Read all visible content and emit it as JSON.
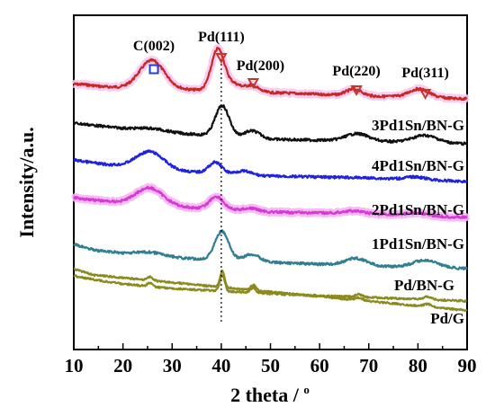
{
  "chart_data": {
    "type": "line",
    "title": "",
    "xlabel": "2 theta / ",
    "xlabel_superscript": "o",
    "ylabel": "Intensity/a.u.",
    "xlim": [
      10,
      90
    ],
    "x_ticks": [
      "10",
      "20",
      "30",
      "40",
      "50",
      "60",
      "70",
      "80",
      "90"
    ],
    "y_ticks_shown": false,
    "grid": false,
    "legend": "none",
    "reference_line": {
      "x": 40,
      "style": "dotted",
      "color": "#000000"
    },
    "annotations": [
      {
        "text": "C(002)",
        "x": 26.3,
        "marker": "square",
        "color": "#1f3fd6"
      },
      {
        "text": "Pd(111)",
        "x": 40.0,
        "marker": "triangle-down",
        "color": "#c0392b"
      },
      {
        "text": "Pd(200)",
        "x": 46.5,
        "marker": "triangle-down",
        "color": "#c0392b"
      },
      {
        "text": "Pd(220)",
        "x": 67.5,
        "marker": "triangle-down",
        "color": "#c0392b"
      },
      {
        "text": "Pd(311)",
        "x": 81.5,
        "marker": "triangle-down",
        "color": "#c0392b"
      }
    ],
    "series": [
      {
        "color": "#c62828",
        "glow": "#f8c8ee",
        "baseline": 94,
        "noise": 1.4,
        "profile": [
          [
            10,
            0.25
          ],
          [
            12,
            0.0
          ],
          [
            16,
            -2.5
          ],
          [
            20,
            -3.5
          ],
          [
            22,
            -3.5
          ],
          [
            50,
            -9
          ],
          [
            60,
            -11
          ],
          [
            70,
            -13
          ],
          [
            80,
            -14
          ],
          [
            90,
            -16
          ]
        ],
        "peaks": [
          {
            "x": 25.9,
            "height": 31,
            "width": 2.5
          },
          {
            "x": 39.3,
            "height": 46,
            "width": 1.3
          },
          {
            "x": 42.5,
            "height": 8,
            "width": 1.5
          },
          {
            "x": 46.2,
            "height": 7,
            "width": 1.3
          },
          {
            "x": 67.0,
            "height": 7,
            "width": 1.6
          },
          {
            "x": 80.2,
            "height": 9,
            "width": 2.0
          }
        ]
      },
      {
        "name": "3Pd1Sn/BN-G",
        "color": "#111111",
        "baseline": 137,
        "noise": 1.4,
        "profile": [
          [
            10,
            0
          ],
          [
            15,
            -3
          ],
          [
            20,
            -6
          ],
          [
            30,
            -11
          ],
          [
            50,
            -18
          ],
          [
            70,
            -20
          ],
          [
            90,
            -23
          ]
        ],
        "peaks": [
          {
            "x": 40.2,
            "height": 34,
            "width": 1.4
          },
          {
            "x": 46.3,
            "height": 8,
            "width": 1.6
          },
          {
            "x": 67.6,
            "height": 8,
            "width": 2.3
          },
          {
            "x": 81.4,
            "height": 8,
            "width": 2.5
          },
          {
            "x": 26.0,
            "height": 3,
            "width": 3.0
          }
        ]
      },
      {
        "name": "4Pd1Sn/BN-G",
        "color": "#1f22e0",
        "baseline": 178,
        "noise": 1.4,
        "profile": [
          [
            10,
            0
          ],
          [
            15,
            -4
          ],
          [
            20,
            -7
          ],
          [
            30,
            -12
          ],
          [
            50,
            -18
          ],
          [
            70,
            -20
          ],
          [
            90,
            -24
          ]
        ],
        "peaks": [
          {
            "x": 25.5,
            "height": 19,
            "width": 2.8
          },
          {
            "x": 38.8,
            "height": 12,
            "width": 1.3
          },
          {
            "x": 44.5,
            "height": 4,
            "width": 1.5
          },
          {
            "x": 79.5,
            "height": 3,
            "width": 2.0
          }
        ]
      },
      {
        "name": "2Pd1Sn/BN-G",
        "color": "#d63ad6",
        "glow": "#f5b4ee",
        "baseline": 220,
        "noise": 1.4,
        "profile": [
          [
            10,
            0
          ],
          [
            15,
            -3
          ],
          [
            20,
            -6
          ],
          [
            30,
            -10
          ],
          [
            50,
            -16
          ],
          [
            70,
            -18
          ],
          [
            90,
            -22
          ]
        ],
        "peaks": [
          {
            "x": 25.4,
            "height": 19,
            "width": 2.8
          },
          {
            "x": 39.0,
            "height": 14,
            "width": 1.4
          },
          {
            "x": 46.0,
            "height": 3,
            "width": 1.5
          },
          {
            "x": 66.8,
            "height": 3,
            "width": 2.0
          },
          {
            "x": 79.8,
            "height": 3,
            "width": 2.0
          }
        ]
      },
      {
        "name": "1Pd1Sn/BN-G",
        "color": "#2f7f91",
        "baseline": 272,
        "noise": 1.4,
        "profile": [
          [
            10,
            0
          ],
          [
            12,
            -3
          ],
          [
            15,
            -7
          ],
          [
            20,
            -10
          ],
          [
            30,
            -15
          ],
          [
            50,
            -20
          ],
          [
            70,
            -24
          ],
          [
            90,
            -27
          ]
        ],
        "peaks": [
          {
            "x": 40.1,
            "height": 32,
            "width": 1.4
          },
          {
            "x": 46.2,
            "height": 8,
            "width": 1.6
          },
          {
            "x": 67.4,
            "height": 8,
            "width": 2.2
          },
          {
            "x": 81.5,
            "height": 8,
            "width": 2.5
          },
          {
            "x": 25.8,
            "height": 4,
            "width": 3.0
          }
        ]
      },
      {
        "name": "Pd/BN-G",
        "color": "#8a8a1e",
        "baseline": 307,
        "noise": 1.0,
        "profile": [
          [
            10,
            0
          ],
          [
            12,
            -2
          ],
          [
            15,
            -5
          ],
          [
            20,
            -9
          ],
          [
            30,
            -14
          ],
          [
            50,
            -20
          ],
          [
            70,
            -24
          ],
          [
            90,
            -28
          ]
        ],
        "peaks": [
          {
            "x": 25.5,
            "height": 4,
            "width": 0.5
          },
          {
            "x": 40.2,
            "height": 18,
            "width": 0.5
          },
          {
            "x": 46.5,
            "height": 6,
            "width": 0.5
          },
          {
            "x": 68.0,
            "height": 3,
            "width": 0.7
          },
          {
            "x": 82.0,
            "height": 3,
            "width": 0.8
          }
        ]
      },
      {
        "name": "Pd/G"
      }
    ]
  }
}
